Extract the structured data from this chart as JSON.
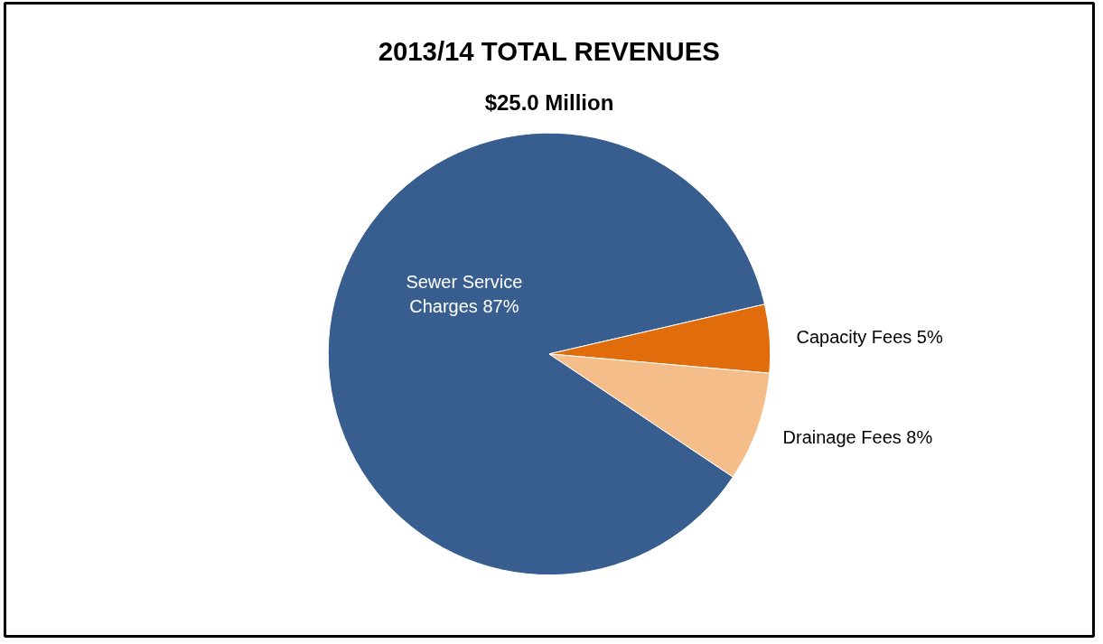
{
  "chart_data": {
    "type": "pie",
    "title": "2013/14 TOTAL REVENUES",
    "subtitle": "$25.0 Million",
    "categories": [
      "Sewer Service Charges",
      "Capacity Fees",
      "Drainage Fees"
    ],
    "values": [
      87,
      5,
      8
    ],
    "colors": [
      "#375e8e",
      "#e06c0c",
      "#f5bd8a"
    ],
    "value_labels": [
      "87%",
      "5%",
      "8%"
    ]
  }
}
